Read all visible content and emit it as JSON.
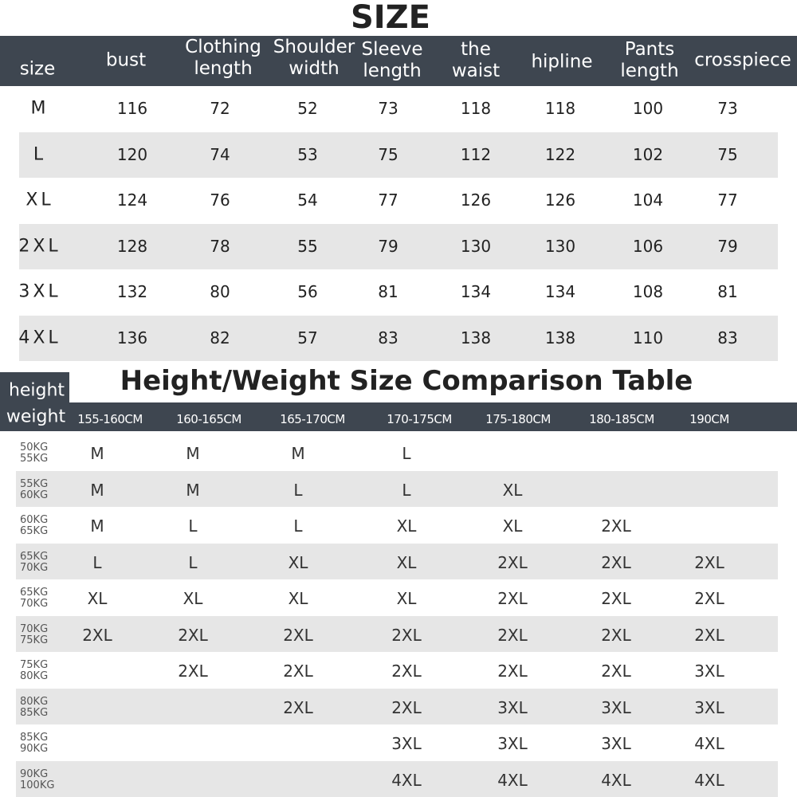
{
  "title": "SIZE",
  "size_table": {
    "headers": [
      "size",
      "bust",
      "Clothing length",
      "Shoulder width",
      "Sleeve length",
      "the waist",
      "hipline",
      "Pants length",
      "crosspiece"
    ],
    "rows": [
      [
        "M",
        116,
        72,
        52,
        73,
        118,
        118,
        100,
        73
      ],
      [
        "L",
        120,
        74,
        53,
        75,
        112,
        122,
        102,
        75
      ],
      [
        "XL",
        124,
        76,
        54,
        77,
        126,
        126,
        104,
        77
      ],
      [
        "2XL",
        128,
        78,
        55,
        79,
        130,
        130,
        106,
        79
      ],
      [
        "3XL",
        132,
        80,
        56,
        81,
        134,
        134,
        108,
        81
      ],
      [
        "4XL",
        136,
        82,
        57,
        83,
        138,
        138,
        110,
        83
      ]
    ]
  },
  "comparison_table": {
    "title": "Height/Weight Size Comparison Table",
    "corner": [
      "height",
      "weight"
    ],
    "heights": [
      "155-160CM",
      "160-165CM",
      "165-170CM",
      "170-175CM",
      "175-180CM",
      "180-185CM",
      "190CM"
    ],
    "rows": [
      {
        "weight": [
          "50KG",
          "55KG"
        ],
        "sizes": [
          "M",
          "M",
          "M",
          "L",
          null,
          null,
          null
        ]
      },
      {
        "weight": [
          "55KG",
          "60KG"
        ],
        "sizes": [
          "M",
          "M",
          "L",
          "L",
          "XL",
          null,
          null
        ]
      },
      {
        "weight": [
          "60KG",
          "65KG"
        ],
        "sizes": [
          "M",
          "L",
          "L",
          "XL",
          "XL",
          "2XL",
          null
        ]
      },
      {
        "weight": [
          "65KG",
          "70KG"
        ],
        "sizes": [
          "L",
          "L",
          "XL",
          "XL",
          "2XL",
          "2XL",
          "2XL"
        ]
      },
      {
        "weight": [
          "65KG",
          "70KG"
        ],
        "sizes": [
          "XL",
          "XL",
          "XL",
          "XL",
          "2XL",
          "2XL",
          "2XL"
        ]
      },
      {
        "weight": [
          "70KG",
          "75KG"
        ],
        "sizes": [
          "2XL",
          "2XL",
          "2XL",
          "2XL",
          "2XL",
          "2XL",
          "2XL"
        ]
      },
      {
        "weight": [
          "75KG",
          "80KG"
        ],
        "sizes": [
          null,
          "2XL",
          "2XL",
          "2XL",
          "2XL",
          "2XL",
          "3XL"
        ]
      },
      {
        "weight": [
          "80KG",
          "85KG"
        ],
        "sizes": [
          null,
          null,
          "2XL",
          "2XL",
          "3XL",
          "3XL",
          "3XL"
        ]
      },
      {
        "weight": [
          "85KG",
          "90KG"
        ],
        "sizes": [
          null,
          null,
          null,
          "3XL",
          "3XL",
          "3XL",
          "4XL"
        ]
      },
      {
        "weight": [
          "90KG",
          "100KG"
        ],
        "sizes": [
          null,
          null,
          null,
          "4XL",
          "4XL",
          "4XL",
          "4XL"
        ]
      }
    ]
  }
}
